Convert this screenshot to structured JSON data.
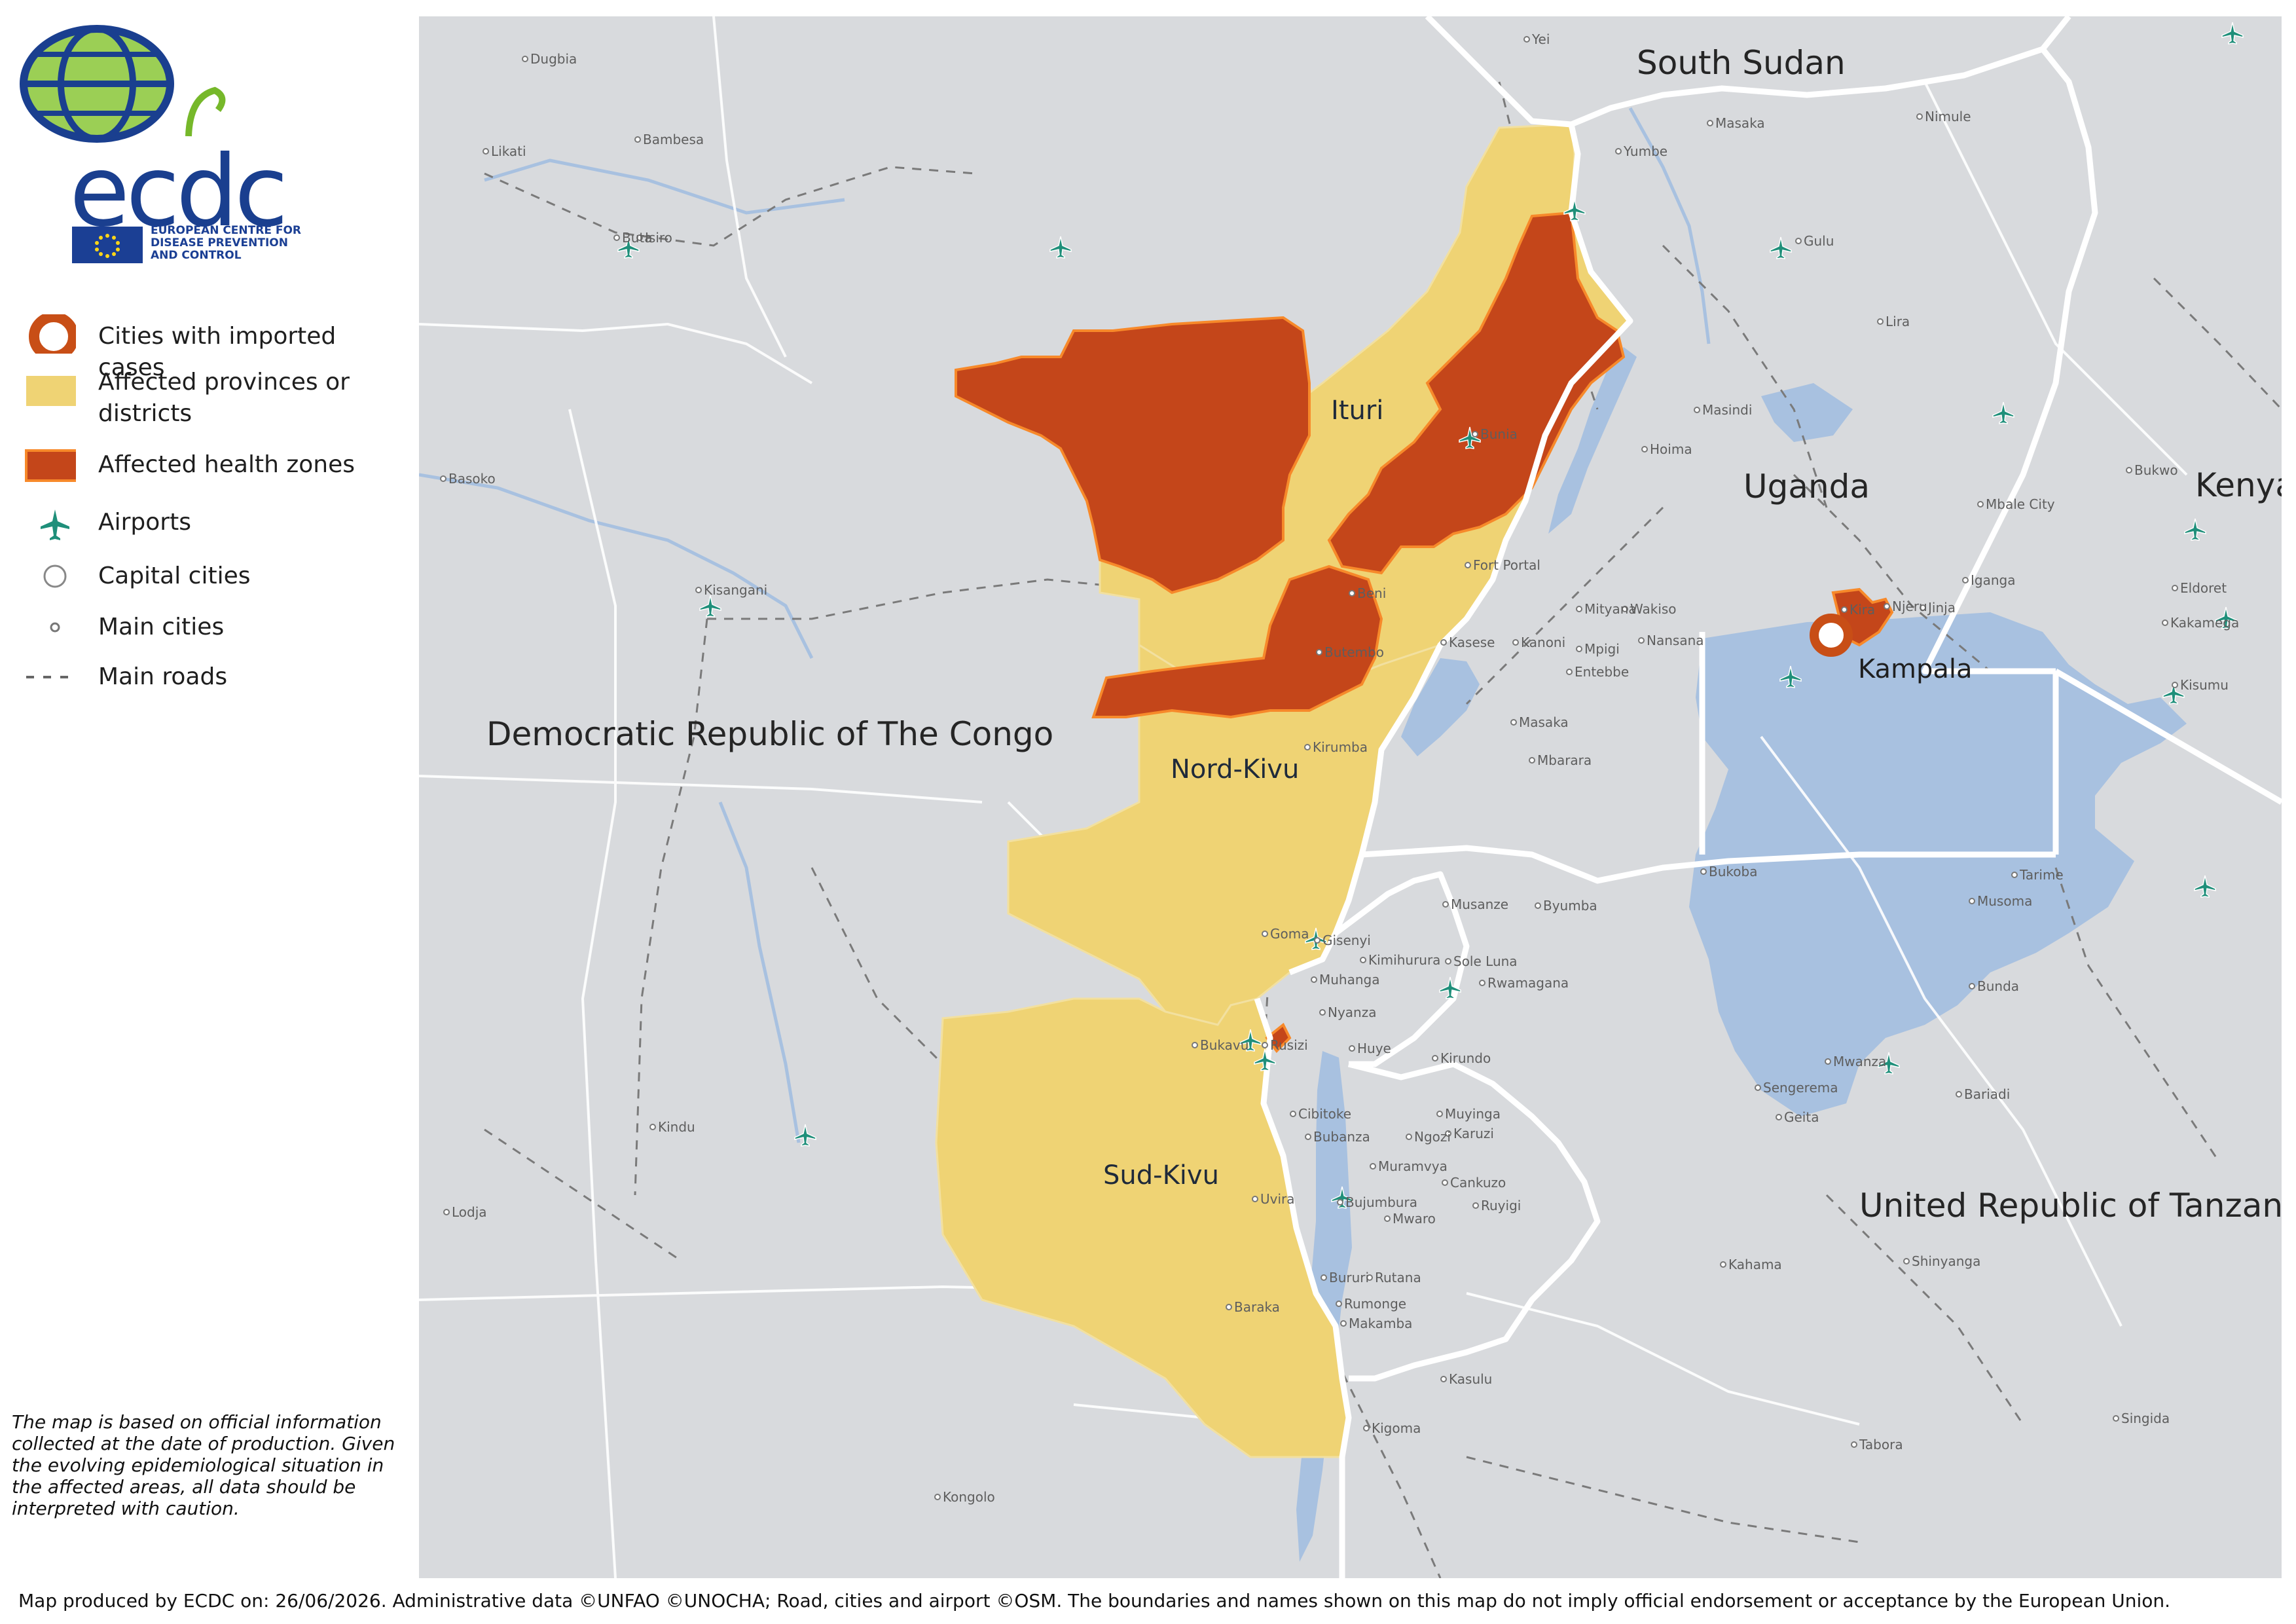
{
  "org": {
    "logo_text": "ecdc",
    "name_lines": [
      "EUROPEAN CENTRE FOR",
      "DISEASE PREVENTION",
      "AND CONTROL"
    ]
  },
  "legend": {
    "items": [
      {
        "label": "Cities with imported cases",
        "icon": "ring-icon",
        "color": "#c84e16"
      },
      {
        "label": "Affected provinces or districts",
        "icon": "swatch-icon",
        "color": "#efd374"
      },
      {
        "label": "Affected health zones",
        "icon": "swatch-icon",
        "color": "#c4461a"
      },
      {
        "label": "Airports",
        "icon": "airplane-icon",
        "color": "#1f8f7a"
      },
      {
        "label": "Capital cities",
        "icon": "circle-icon",
        "color": "#ffffff"
      },
      {
        "label": "Main cities",
        "icon": "dot-icon",
        "color": "#777777"
      },
      {
        "label": "Main roads",
        "icon": "dashed-line-icon",
        "color": "#666666"
      }
    ]
  },
  "disclaimer": "The map is based on official information collected at the date of production. Given the evolving epidemiological situation in the affected areas, all data should be interpreted with caution.",
  "footer": "Map produced by ECDC on: 26/06/2026. Administrative data ©UNFAO  ©UNOCHA;  Road, cities and airport ©OSM. The boundaries and names shown on this map do not imply official endorsement or acceptance by the European Union.",
  "map": {
    "countries": [
      "South Sudan",
      "Uganda",
      "Kenya",
      "Democratic Republic of The Congo",
      "United Republic of Tanzania"
    ],
    "provinces": [
      "Ituri",
      "Nord-Kivu",
      "Sud-Kivu"
    ],
    "capital_label": "Kampala",
    "places": [
      "Dugbia",
      "Yei",
      "Likati",
      "Bambesa",
      "Buta",
      "Isiro",
      "Nimule",
      "Masaka",
      "Yumbe",
      "Gulu",
      "Lira",
      "Masindi",
      "Hoima",
      "Basoko",
      "Bunia",
      "Bukwo",
      "Mbale City",
      "Fort Portal",
      "Iganga",
      "Eldoret",
      "Mityana",
      "Wakiso",
      "Kira",
      "Njeru",
      "Jinja",
      "Kisangani",
      "Beni",
      "Kanoni",
      "Mpigi",
      "Nansana",
      "Kakamega",
      "Kasese",
      "Butembo",
      "Entebbe",
      "Kisumu",
      "Masaka",
      "Kirumba",
      "Mbarara",
      "Bukoba",
      "Tarime",
      "Musanze",
      "Byumba",
      "Musoma",
      "Goma",
      "Gisenyi",
      "Kimihurura",
      "Sole Luna",
      "Muhanga",
      "Rwamagana",
      "Nyanza",
      "Bunda",
      "Bukavu",
      "Rusizi",
      "Huye",
      "Kirundo",
      "Mwanza",
      "Sengerema",
      "Bariadi",
      "Geita",
      "Kindu",
      "Cibitoke",
      "Muyinga",
      "Bubanza",
      "Ngozi",
      "Karuzi",
      "Muramvya",
      "Cankuzo",
      "Uvira",
      "Bujumbura",
      "Ruyigi",
      "Lodja",
      "Mwaro",
      "Kahama",
      "Shinyanga",
      "Bururi",
      "Rutana",
      "Baraka",
      "Rumonge",
      "Makamba",
      "Kasulu",
      "Kigoma",
      "Singida",
      "Tabora",
      "Kongolo"
    ]
  }
}
